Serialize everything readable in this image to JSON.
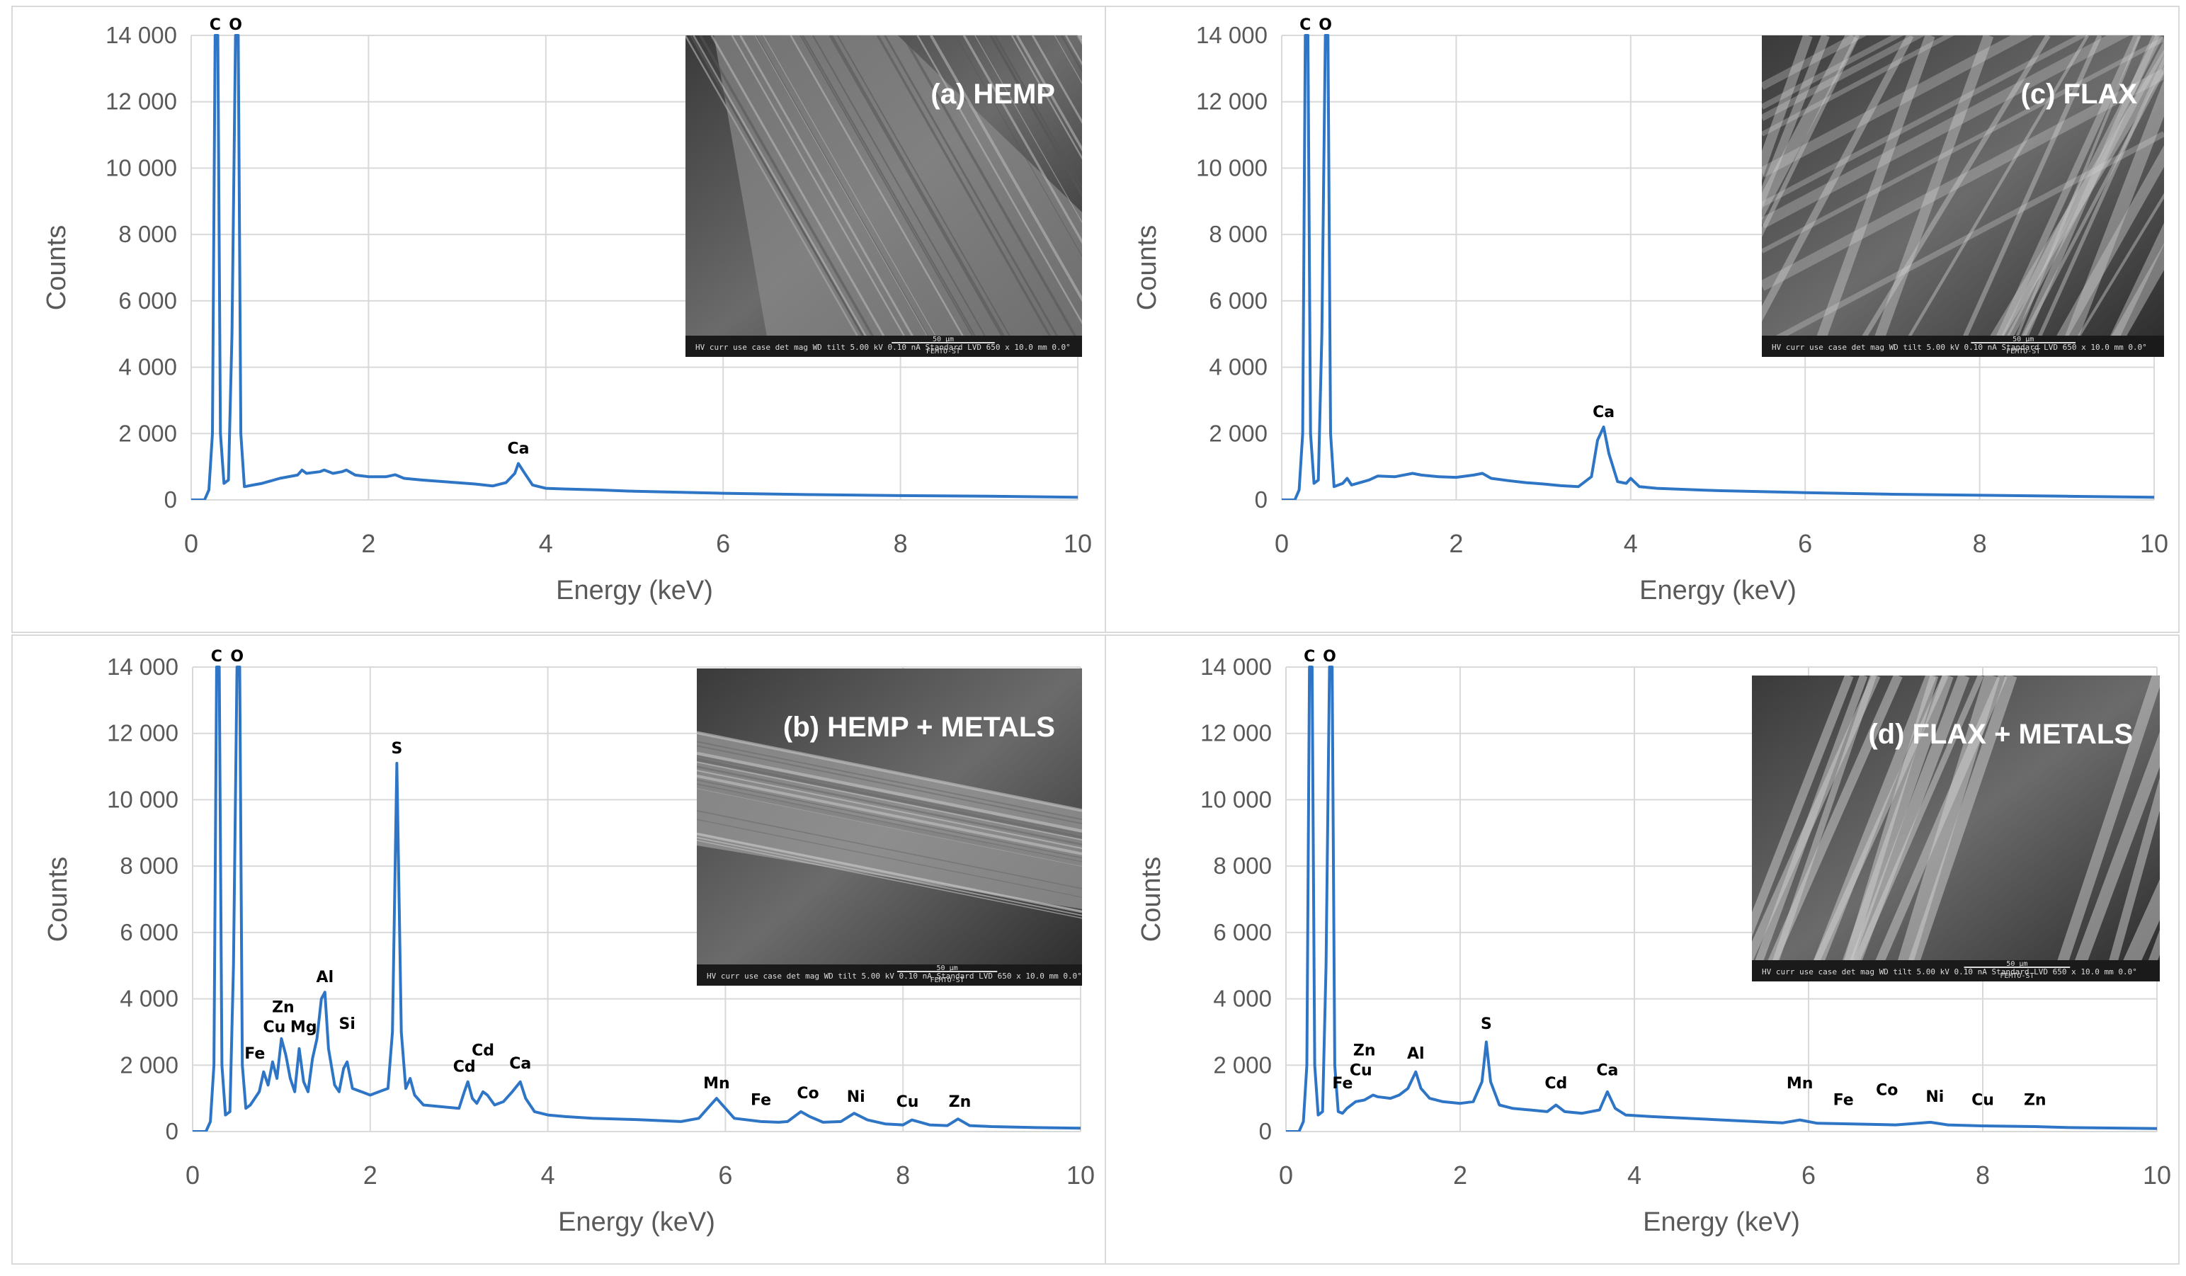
{
  "chart_data": [
    {
      "type": "line",
      "panel_title": "(a) HEMP",
      "xlabel": "Energy (keV)",
      "ylabel": "Counts",
      "xlim": [
        0,
        10
      ],
      "ylim": [
        0,
        14000
      ],
      "x_ticks": [
        "0",
        "2",
        "4",
        "6",
        "8",
        "10"
      ],
      "y_ticks": [
        "0",
        "2 000",
        "4 000",
        "6 000",
        "8 000",
        "10 000",
        "12 000",
        "14 000"
      ],
      "grid": true,
      "line_color": "#2e75c6",
      "series": [
        {
          "x": [
            0,
            0.15,
            0.2,
            0.24,
            0.27,
            0.3,
            0.33,
            0.37,
            0.42,
            0.46,
            0.5,
            0.53,
            0.56,
            0.6,
            0.7,
            0.8,
            1.0,
            1.2,
            1.25,
            1.3,
            1.45,
            1.5,
            1.6,
            1.7,
            1.75,
            1.85,
            2.0,
            2.2,
            2.3,
            2.4,
            2.6,
            2.8,
            3.0,
            3.2,
            3.4,
            3.55,
            3.65,
            3.69,
            3.75,
            3.85,
            4.0,
            4.2,
            4.6,
            5.0,
            6.0,
            7.0,
            8.0,
            9.0,
            10.0
          ],
          "y": [
            0,
            0,
            300,
            2000,
            14000,
            14000,
            2000,
            500,
            600,
            5000,
            14000,
            14000,
            2000,
            400,
            450,
            500,
            650,
            750,
            900,
            800,
            850,
            900,
            800,
            850,
            900,
            750,
            700,
            700,
            760,
            650,
            600,
            560,
            520,
            480,
            420,
            520,
            800,
            1100,
            850,
            450,
            350,
            330,
            300,
            260,
            200,
            160,
            130,
            110,
            80
          ]
        }
      ],
      "annotations": [
        {
          "label": "C",
          "x": 0.27,
          "y": 14000
        },
        {
          "label": "O",
          "x": 0.5,
          "y": 14000
        },
        {
          "label": "Ca",
          "x": 3.69,
          "y": 1100
        }
      ]
    },
    {
      "type": "line",
      "panel_title": "(c) FLAX",
      "xlabel": "Energy (keV)",
      "ylabel": "Counts",
      "xlim": [
        0,
        10
      ],
      "ylim": [
        0,
        14000
      ],
      "x_ticks": [
        "0",
        "2",
        "4",
        "6",
        "8",
        "10"
      ],
      "y_ticks": [
        "0",
        "2 000",
        "4 000",
        "6 000",
        "8 000",
        "10 000",
        "12 000",
        "14 000"
      ],
      "grid": true,
      "line_color": "#2e75c6",
      "series": [
        {
          "x": [
            0,
            0.15,
            0.2,
            0.24,
            0.27,
            0.3,
            0.33,
            0.37,
            0.42,
            0.46,
            0.5,
            0.53,
            0.56,
            0.6,
            0.7,
            0.75,
            0.8,
            1.0,
            1.1,
            1.3,
            1.5,
            1.6,
            1.8,
            2.0,
            2.2,
            2.3,
            2.4,
            2.6,
            2.8,
            3.0,
            3.2,
            3.4,
            3.55,
            3.62,
            3.69,
            3.75,
            3.85,
            3.95,
            4.0,
            4.1,
            4.3,
            5.0,
            6.0,
            7.0,
            8.0,
            9.0,
            10.0
          ],
          "y": [
            0,
            0,
            300,
            2000,
            14000,
            14000,
            2000,
            500,
            600,
            5000,
            14000,
            14000,
            2000,
            400,
            500,
            650,
            450,
            600,
            720,
            700,
            800,
            750,
            700,
            680,
            750,
            800,
            650,
            580,
            520,
            480,
            430,
            400,
            700,
            1800,
            2200,
            1400,
            550,
            500,
            650,
            400,
            350,
            280,
            220,
            170,
            140,
            110,
            80
          ]
        }
      ],
      "annotations": [
        {
          "label": "C",
          "x": 0.27,
          "y": 14000
        },
        {
          "label": "O",
          "x": 0.5,
          "y": 14000
        },
        {
          "label": "Ca",
          "x": 3.69,
          "y": 2200
        }
      ]
    },
    {
      "type": "line",
      "panel_title": "(b) HEMP + METALS",
      "xlabel": "Energy (keV)",
      "ylabel": "Counts",
      "xlim": [
        0,
        10
      ],
      "ylim": [
        0,
        14000
      ],
      "x_ticks": [
        "0",
        "2",
        "4",
        "6",
        "8",
        "10"
      ],
      "y_ticks": [
        "0",
        "2 000",
        "4 000",
        "6 000",
        "8 000",
        "10 000",
        "12 000",
        "14 000"
      ],
      "grid": true,
      "line_color": "#2e75c6",
      "series": [
        {
          "x": [
            0,
            0.15,
            0.2,
            0.24,
            0.27,
            0.3,
            0.33,
            0.37,
            0.42,
            0.46,
            0.5,
            0.53,
            0.56,
            0.6,
            0.65,
            0.7,
            0.75,
            0.8,
            0.85,
            0.9,
            0.95,
            1.0,
            1.05,
            1.1,
            1.15,
            1.2,
            1.25,
            1.3,
            1.35,
            1.4,
            1.45,
            1.49,
            1.53,
            1.6,
            1.65,
            1.7,
            1.74,
            1.8,
            1.9,
            2.0,
            2.1,
            2.2,
            2.25,
            2.3,
            2.35,
            2.4,
            2.45,
            2.5,
            2.6,
            2.8,
            3.0,
            3.06,
            3.1,
            3.15,
            3.2,
            3.27,
            3.32,
            3.4,
            3.5,
            3.6,
            3.69,
            3.75,
            3.85,
            4.0,
            4.2,
            4.5,
            5.0,
            5.5,
            5.7,
            5.8,
            5.9,
            6.0,
            6.1,
            6.4,
            6.6,
            6.7,
            6.85,
            6.95,
            7.1,
            7.3,
            7.45,
            7.6,
            7.8,
            8.0,
            8.1,
            8.3,
            8.5,
            8.62,
            8.75,
            9.0,
            9.5,
            10.0
          ],
          "y": [
            0,
            0,
            300,
            2000,
            14000,
            14000,
            2000,
            500,
            600,
            5000,
            14000,
            14000,
            2000,
            700,
            800,
            1000,
            1200,
            1800,
            1400,
            2100,
            1600,
            2800,
            2300,
            1600,
            1200,
            2500,
            1500,
            1200,
            2200,
            2800,
            4000,
            4200,
            2500,
            1400,
            1200,
            1900,
            2100,
            1300,
            1200,
            1100,
            1200,
            1300,
            3000,
            11100,
            3000,
            1300,
            1600,
            1100,
            800,
            750,
            700,
            1200,
            1500,
            1000,
            850,
            1200,
            1100,
            800,
            900,
            1200,
            1500,
            1000,
            600,
            500,
            450,
            400,
            360,
            300,
            400,
            700,
            1000,
            700,
            400,
            300,
            280,
            300,
            600,
            450,
            280,
            300,
            550,
            350,
            230,
            200,
            350,
            200,
            180,
            380,
            180,
            150,
            120,
            100
          ]
        }
      ],
      "annotations": [
        {
          "label": "C",
          "x": 0.27,
          "y": 14000
        },
        {
          "label": "O",
          "x": 0.5,
          "y": 14000
        },
        {
          "label": "Fe",
          "x": 0.7,
          "y": 1900
        },
        {
          "label": "Cu",
          "x": 0.92,
          "y": 2700
        },
        {
          "label": "Zn",
          "x": 1.02,
          "y": 3300
        },
        {
          "label": "Mg",
          "x": 1.25,
          "y": 2700
        },
        {
          "label": "Al",
          "x": 1.49,
          "y": 4200
        },
        {
          "label": "Si",
          "x": 1.74,
          "y": 2800
        },
        {
          "label": "S",
          "x": 2.3,
          "y": 11100
        },
        {
          "label": "Cd",
          "x": 3.06,
          "y": 1500
        },
        {
          "label": "Cd",
          "x": 3.27,
          "y": 2000
        },
        {
          "label": "Ca",
          "x": 3.69,
          "y": 1600
        },
        {
          "label": "Mn",
          "x": 5.9,
          "y": 1000
        },
        {
          "label": "Fe",
          "x": 6.4,
          "y": 500
        },
        {
          "label": "Co",
          "x": 6.93,
          "y": 700
        },
        {
          "label": "Ni",
          "x": 7.47,
          "y": 600
        },
        {
          "label": "Cu",
          "x": 8.05,
          "y": 450
        },
        {
          "label": "Zn",
          "x": 8.64,
          "y": 450
        }
      ]
    },
    {
      "type": "line",
      "panel_title": "(d) FLAX + METALS",
      "xlabel": "Energy (keV)",
      "ylabel": "Counts",
      "xlim": [
        0,
        10
      ],
      "ylim": [
        0,
        14000
      ],
      "x_ticks": [
        "0",
        "2",
        "4",
        "6",
        "8",
        "10"
      ],
      "y_ticks": [
        "0",
        "2 000",
        "4 000",
        "6 000",
        "8 000",
        "10 000",
        "12 000",
        "14 000"
      ],
      "grid": true,
      "line_color": "#2e75c6",
      "series": [
        {
          "x": [
            0,
            0.15,
            0.2,
            0.24,
            0.27,
            0.3,
            0.33,
            0.37,
            0.42,
            0.46,
            0.5,
            0.53,
            0.56,
            0.6,
            0.65,
            0.7,
            0.8,
            0.9,
            1.0,
            1.05,
            1.2,
            1.3,
            1.4,
            1.49,
            1.55,
            1.65,
            1.8,
            2.0,
            2.15,
            2.25,
            2.3,
            2.35,
            2.45,
            2.6,
            2.8,
            3.0,
            3.1,
            3.2,
            3.4,
            3.6,
            3.69,
            3.78,
            3.9,
            4.2,
            5.0,
            5.7,
            5.9,
            6.1,
            6.5,
            7.0,
            7.4,
            7.6,
            8.0,
            8.6,
            9.0,
            10.0
          ],
          "y": [
            0,
            0,
            300,
            2000,
            14000,
            14000,
            2000,
            500,
            600,
            5000,
            14000,
            14000,
            2000,
            600,
            550,
            700,
            900,
            950,
            1100,
            1050,
            1000,
            1100,
            1300,
            1800,
            1300,
            1000,
            900,
            850,
            900,
            1500,
            2700,
            1500,
            800,
            700,
            650,
            600,
            800,
            600,
            550,
            650,
            1200,
            700,
            500,
            450,
            350,
            260,
            350,
            250,
            230,
            200,
            280,
            200,
            170,
            150,
            120,
            90
          ]
        }
      ],
      "annotations": [
        {
          "label": "C",
          "x": 0.27,
          "y": 14000
        },
        {
          "label": "O",
          "x": 0.5,
          "y": 14000
        },
        {
          "label": "Fe",
          "x": 0.65,
          "y": 1000
        },
        {
          "label": "Cu",
          "x": 0.86,
          "y": 1400
        },
        {
          "label": "Zn",
          "x": 0.9,
          "y": 2000
        },
        {
          "label": "Al",
          "x": 1.49,
          "y": 1900
        },
        {
          "label": "S",
          "x": 2.3,
          "y": 2800
        },
        {
          "label": "Cd",
          "x": 3.1,
          "y": 1000
        },
        {
          "label": "Ca",
          "x": 3.69,
          "y": 1400
        },
        {
          "label": "Mn",
          "x": 5.9,
          "y": 1000
        },
        {
          "label": "Fe",
          "x": 6.4,
          "y": 500
        },
        {
          "label": "Co",
          "x": 6.9,
          "y": 800
        },
        {
          "label": "Ni",
          "x": 7.45,
          "y": 600
        },
        {
          "label": "Cu",
          "x": 8.0,
          "y": 500
        },
        {
          "label": "Zn",
          "x": 8.6,
          "y": 500
        }
      ]
    }
  ],
  "sem_insets": [
    {
      "name": "hemp",
      "scale_label": "50 μm",
      "footer": "HV  curr  use case  det  mag  WD  tilt   5.00 kV  0.10 nA  Standard  LVD  650 x  10.0 mm  0.0°",
      "institution": "FEMTO-ST"
    },
    {
      "name": "flax",
      "scale_label": "50 μm",
      "footer": "HV  curr  use case  det  mag  WD  tilt   5.00 kV  0.10 nA  Standard  LVD  650 x  10.0 mm  0.0°",
      "institution": "FEMTO-ST"
    },
    {
      "name": "hemp-metals",
      "scale_label": "50 μm",
      "footer": "HV  curr  use case  det  mag  WD  tilt   5.00 kV  0.10 nA  Standard  LVD  650 x  10.0 mm  0.0°",
      "institution": "FEMTO-ST"
    },
    {
      "name": "flax-metals",
      "scale_label": "50 μm",
      "footer": "HV  curr  use case  det  mag  WD  tilt   5.00 kV  0.10 nA  Standard  LVD  650 x  10.0 mm  0.0°",
      "institution": "FEMTO-ST"
    }
  ]
}
